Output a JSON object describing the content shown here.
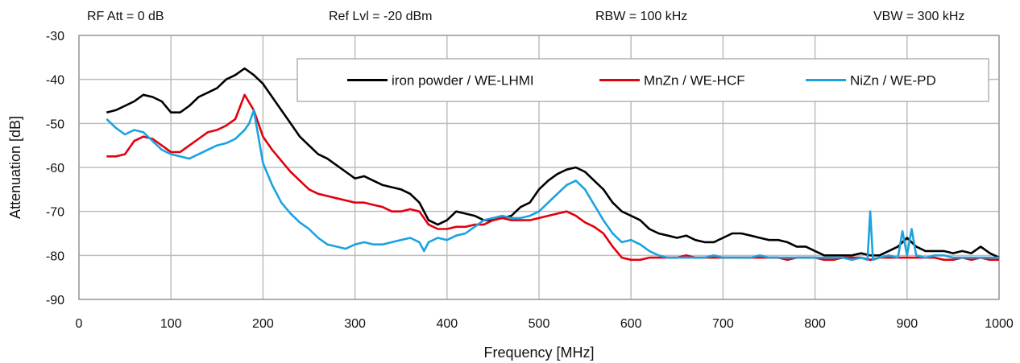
{
  "header": {
    "rf_att": "RF Att  =  0 dB",
    "ref_lvl": "Ref Lvl  =  -20 dBm",
    "rbw": "RBW  =  100 kHz",
    "vbw": "VBW  =  300 kHz"
  },
  "chart_data": {
    "type": "line",
    "title": "",
    "xlabel": "Frequency [MHz]",
    "ylabel": "Attenuation [dB]",
    "xlim": [
      0,
      1000
    ],
    "ylim": [
      -90,
      -30
    ],
    "xticks": [
      0,
      100,
      200,
      300,
      400,
      500,
      600,
      700,
      800,
      900,
      1000
    ],
    "yticks": [
      -30,
      -40,
      -50,
      -60,
      -70,
      -80,
      -90
    ],
    "grid": true,
    "legend_position": "top-right",
    "series": [
      {
        "name": "iron powder / WE-LHMI",
        "color": "#000000",
        "x": [
          30,
          40,
          50,
          60,
          70,
          80,
          90,
          100,
          110,
          120,
          130,
          140,
          150,
          160,
          170,
          180,
          190,
          200,
          210,
          220,
          230,
          240,
          250,
          260,
          270,
          280,
          290,
          300,
          310,
          320,
          330,
          340,
          350,
          360,
          370,
          380,
          390,
          400,
          410,
          420,
          430,
          440,
          450,
          460,
          470,
          480,
          490,
          500,
          510,
          520,
          530,
          540,
          550,
          560,
          570,
          580,
          590,
          600,
          610,
          620,
          630,
          640,
          650,
          660,
          670,
          680,
          690,
          700,
          710,
          720,
          730,
          740,
          750,
          760,
          770,
          780,
          790,
          800,
          810,
          820,
          830,
          840,
          850,
          860,
          870,
          880,
          890,
          900,
          910,
          920,
          930,
          940,
          950,
          960,
          970,
          980,
          990,
          1000
        ],
        "y": [
          -47.5,
          -47,
          -46,
          -45,
          -43.5,
          -44,
          -45,
          -47.5,
          -47.5,
          -46,
          -44,
          -43,
          -42,
          -40,
          -39,
          -37.5,
          -39,
          -41,
          -44,
          -47,
          -50,
          -53,
          -55,
          -57,
          -58,
          -59.5,
          -61,
          -62.5,
          -62,
          -63,
          -64,
          -64.5,
          -65,
          -66,
          -68,
          -72,
          -73,
          -72,
          -70,
          -70.5,
          -71,
          -72,
          -72,
          -71.5,
          -71,
          -69,
          -68,
          -65,
          -63,
          -61.5,
          -60.5,
          -60,
          -61,
          -63,
          -65,
          -68,
          -70,
          -71,
          -72,
          -74,
          -75,
          -75.5,
          -76,
          -75.5,
          -76.5,
          -77,
          -77,
          -76,
          -75,
          -75,
          -75.5,
          -76,
          -76.5,
          -76.5,
          -77,
          -78,
          -78,
          -79,
          -80,
          -80,
          -80,
          -80,
          -79.5,
          -80,
          -80,
          -79,
          -78,
          -76,
          -78,
          -79,
          -79,
          -79,
          -79.5,
          -79,
          -79.5,
          -78,
          -79.5,
          -80.5
        ]
      },
      {
        "name": "MnZn / WE-HCF",
        "color": "#e3000f",
        "x": [
          30,
          40,
          50,
          60,
          70,
          80,
          90,
          100,
          110,
          120,
          130,
          140,
          150,
          160,
          170,
          180,
          190,
          200,
          210,
          220,
          230,
          240,
          250,
          260,
          270,
          280,
          290,
          300,
          310,
          320,
          330,
          340,
          350,
          360,
          370,
          380,
          390,
          400,
          410,
          420,
          430,
          440,
          450,
          460,
          470,
          480,
          490,
          500,
          510,
          520,
          530,
          540,
          550,
          560,
          570,
          580,
          590,
          600,
          610,
          620,
          630,
          640,
          650,
          660,
          670,
          680,
          690,
          700,
          710,
          720,
          730,
          740,
          750,
          760,
          770,
          780,
          790,
          800,
          810,
          820,
          830,
          840,
          850,
          860,
          870,
          880,
          890,
          900,
          910,
          920,
          930,
          940,
          950,
          960,
          970,
          980,
          990,
          1000
        ],
        "y": [
          -57.5,
          -57.5,
          -57,
          -54,
          -53,
          -53.5,
          -55,
          -56.5,
          -56.5,
          -55,
          -53.5,
          -52,
          -51.5,
          -50.5,
          -49,
          -43.5,
          -47,
          -53,
          -56,
          -58.5,
          -61,
          -63,
          -65,
          -66,
          -66.5,
          -67,
          -67.5,
          -68,
          -68,
          -68.5,
          -69,
          -70,
          -70,
          -69.5,
          -70,
          -73,
          -74,
          -74,
          -73.5,
          -73.5,
          -73,
          -73,
          -72,
          -71.5,
          -72,
          -72,
          -72,
          -71.5,
          -71,
          -70.5,
          -70,
          -71,
          -72.5,
          -73.5,
          -75,
          -78,
          -80.5,
          -81,
          -81,
          -80.5,
          -80.5,
          -80.5,
          -80.5,
          -80,
          -80.5,
          -80.5,
          -80.5,
          -80.5,
          -80.5,
          -80.5,
          -80.5,
          -80.5,
          -80.5,
          -80.5,
          -81,
          -80.5,
          -80.5,
          -80.5,
          -81,
          -81,
          -80.5,
          -80.5,
          -80.5,
          -81,
          -80.5,
          -80.5,
          -80.5,
          -80.5,
          -80.5,
          -80.5,
          -80.5,
          -81,
          -81,
          -80.5,
          -81,
          -80.5,
          -81,
          -81
        ]
      },
      {
        "name": "NiZn / WE-PD",
        "color": "#1aa3e0",
        "x": [
          30,
          40,
          50,
          60,
          70,
          80,
          90,
          100,
          110,
          120,
          130,
          140,
          150,
          160,
          170,
          180,
          185,
          190,
          200,
          210,
          220,
          230,
          240,
          250,
          260,
          270,
          280,
          290,
          300,
          310,
          320,
          330,
          340,
          350,
          360,
          370,
          375,
          380,
          390,
          400,
          410,
          420,
          430,
          440,
          450,
          460,
          470,
          480,
          490,
          500,
          510,
          520,
          530,
          540,
          550,
          560,
          570,
          580,
          590,
          600,
          610,
          620,
          630,
          640,
          650,
          660,
          670,
          680,
          690,
          700,
          710,
          720,
          730,
          740,
          750,
          760,
          770,
          780,
          790,
          800,
          810,
          820,
          830,
          840,
          850,
          857,
          860,
          863,
          870,
          880,
          890,
          895,
          900,
          905,
          910,
          920,
          930,
          940,
          950,
          960,
          970,
          980,
          990,
          1000
        ],
        "y": [
          -49,
          -51,
          -52.5,
          -51.5,
          -52,
          -54,
          -56,
          -57,
          -57.5,
          -58,
          -57,
          -56,
          -55,
          -54.5,
          -53.5,
          -51.5,
          -50,
          -47,
          -59,
          -64,
          -68,
          -70.5,
          -72.5,
          -74,
          -76,
          -77.5,
          -78,
          -78.5,
          -77.5,
          -77,
          -77.5,
          -77.5,
          -77,
          -76.5,
          -76,
          -77,
          -79,
          -77,
          -76,
          -76.5,
          -75.5,
          -75,
          -73.5,
          -72,
          -71.5,
          -71,
          -71.5,
          -71.5,
          -71,
          -70,
          -68,
          -66,
          -64,
          -63,
          -65,
          -68.5,
          -72,
          -75,
          -77,
          -76.5,
          -77.5,
          -79,
          -80,
          -80.5,
          -80.5,
          -80.5,
          -80.5,
          -80.5,
          -80,
          -80.5,
          -80.5,
          -80.5,
          -80.5,
          -80,
          -80.5,
          -80.5,
          -80.5,
          -80.5,
          -80.5,
          -80.5,
          -80.5,
          -80.5,
          -80.5,
          -81,
          -80.5,
          -81,
          -70,
          -81,
          -80.5,
          -80,
          -80.5,
          -74.5,
          -80,
          -74,
          -80,
          -80.5,
          -80,
          -80,
          -80.5,
          -80.5,
          -80.5,
          -80.5,
          -80.5,
          -80.5
        ]
      }
    ]
  }
}
